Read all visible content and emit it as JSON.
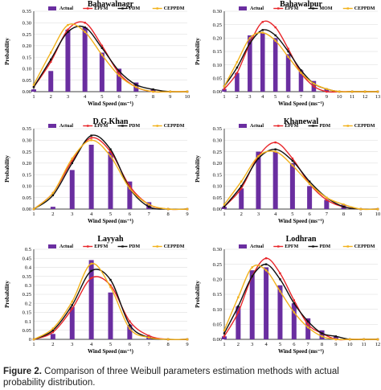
{
  "figure": {
    "caption_label": "Figure 2.",
    "caption_text": "Comparison of three Weibull parameters estimation methods with actual probability distribution."
  },
  "colors": {
    "Actual": "#6a2ea0",
    "EPFM": "#e8262a",
    "PDM": "#111111",
    "MOM": "#111111",
    "CEPPDM": "#f2b21c"
  },
  "chart_data": [
    {
      "type": "bar",
      "title": "Bahawalnagr",
      "xlabel": "Wind Speed (ms⁻¹)",
      "ylabel": "Probability",
      "x": [
        1,
        2,
        3,
        4,
        5,
        6,
        7,
        8,
        9,
        10
      ],
      "xlim": [
        1,
        10
      ],
      "ylim": [
        0,
        0.35
      ],
      "yticks": [
        "0.00",
        "0.05",
        "0.10",
        "0.15",
        "0.20",
        "0.25",
        "0.30",
        "0.35"
      ],
      "legend": [
        "Actual",
        "EPFM",
        "PDM",
        "CEPPDM"
      ],
      "series": [
        {
          "name": "Actual",
          "kind": "bar",
          "values": [
            0.01,
            0.09,
            0.27,
            0.28,
            0.17,
            0.1,
            0.04,
            0.01,
            0.0,
            0.0
          ]
        },
        {
          "name": "EPFM",
          "kind": "line",
          "values": [
            0.02,
            0.13,
            0.27,
            0.3,
            0.2,
            0.08,
            0.02,
            0.0,
            0.0,
            0.0
          ]
        },
        {
          "name": "PDM",
          "kind": "line",
          "values": [
            0.02,
            0.14,
            0.26,
            0.28,
            0.19,
            0.09,
            0.03,
            0.01,
            0.0,
            0.0
          ]
        },
        {
          "name": "CEPPDM",
          "kind": "line",
          "values": [
            0.03,
            0.17,
            0.29,
            0.26,
            0.16,
            0.07,
            0.02,
            0.0,
            0.0,
            0.0
          ]
        }
      ]
    },
    {
      "type": "bar",
      "title": "Bahawalpur",
      "xlabel": "Wind Speed (ms⁻¹)",
      "ylabel": "Probability",
      "x": [
        1,
        2,
        3,
        4,
        5,
        6,
        7,
        8,
        9,
        10,
        11,
        12,
        13
      ],
      "xlim": [
        1,
        13
      ],
      "ylim": [
        0,
        0.3
      ],
      "yticks": [
        "0.00",
        "0.05",
        "0.10",
        "0.15",
        "0.20",
        "0.25",
        "0.30"
      ],
      "legend": [
        "Actual",
        "EPFM",
        "MOM",
        "CEPPDM"
      ],
      "series": [
        {
          "name": "Actual",
          "kind": "bar",
          "values": [
            0.01,
            0.07,
            0.21,
            0.22,
            0.2,
            0.14,
            0.08,
            0.04,
            0.01,
            0.0,
            0.0,
            0.0,
            0.0
          ]
        },
        {
          "name": "EPFM",
          "kind": "line",
          "values": [
            0.01,
            0.07,
            0.18,
            0.26,
            0.24,
            0.16,
            0.07,
            0.02,
            0.0,
            0.0,
            0.0,
            0.0,
            0.0
          ]
        },
        {
          "name": "MOM",
          "kind": "line",
          "values": [
            0.02,
            0.09,
            0.18,
            0.23,
            0.21,
            0.15,
            0.08,
            0.03,
            0.01,
            0.0,
            0.0,
            0.0,
            0.0
          ]
        },
        {
          "name": "CEPPDM",
          "kind": "line",
          "values": [
            0.02,
            0.11,
            0.2,
            0.22,
            0.19,
            0.13,
            0.07,
            0.03,
            0.01,
            0.0,
            0.0,
            0.0,
            0.0
          ]
        }
      ]
    },
    {
      "type": "bar",
      "title": "D.G.Khan",
      "xlabel": "Wind Speed (ms⁻¹)",
      "ylabel": "Probability",
      "x": [
        1,
        2,
        3,
        4,
        5,
        6,
        7,
        8,
        9
      ],
      "xlim": [
        1,
        9
      ],
      "ylim": [
        0,
        0.35
      ],
      "yticks": [
        "0.00",
        "0.05",
        "0.10",
        "0.15",
        "0.20",
        "0.25",
        "0.30",
        "0.35"
      ],
      "legend": [
        "Actual",
        "EPFM",
        "PDM",
        "CEPPDM"
      ],
      "series": [
        {
          "name": "Actual",
          "kind": "bar",
          "values": [
            0.0,
            0.01,
            0.17,
            0.28,
            0.25,
            0.12,
            0.03,
            0.0,
            0.0
          ]
        },
        {
          "name": "EPFM",
          "kind": "line",
          "values": [
            0.0,
            0.07,
            0.21,
            0.31,
            0.25,
            0.1,
            0.02,
            0.0,
            0.0
          ]
        },
        {
          "name": "PDM",
          "kind": "line",
          "values": [
            0.0,
            0.06,
            0.2,
            0.32,
            0.26,
            0.09,
            0.01,
            0.0,
            0.0
          ]
        },
        {
          "name": "CEPPDM",
          "kind": "line",
          "values": [
            0.0,
            0.07,
            0.22,
            0.3,
            0.23,
            0.09,
            0.02,
            0.0,
            0.0
          ]
        }
      ]
    },
    {
      "type": "bar",
      "title": "Khanewal",
      "xlabel": "Wind Speed (ms⁻¹)",
      "ylabel": "Probability",
      "x": [
        1,
        2,
        3,
        4,
        5,
        6,
        7,
        8,
        9,
        10
      ],
      "xlim": [
        1,
        10
      ],
      "ylim": [
        0,
        0.35
      ],
      "yticks": [
        "0.00",
        "0.05",
        "0.10",
        "0.15",
        "0.20",
        "0.25",
        "0.30",
        "0.35"
      ],
      "legend": [
        "Actual",
        "EPFM",
        "PDM",
        "CEPPDM"
      ],
      "series": [
        {
          "name": "Actual",
          "kind": "bar",
          "values": [
            0.01,
            0.09,
            0.25,
            0.25,
            0.2,
            0.1,
            0.04,
            0.02,
            0.0,
            0.0
          ]
        },
        {
          "name": "EPFM",
          "kind": "line",
          "values": [
            0.01,
            0.09,
            0.23,
            0.29,
            0.22,
            0.11,
            0.04,
            0.01,
            0.0,
            0.0
          ]
        },
        {
          "name": "PDM",
          "kind": "line",
          "values": [
            0.01,
            0.1,
            0.22,
            0.26,
            0.21,
            0.12,
            0.05,
            0.01,
            0.0,
            0.0
          ]
        },
        {
          "name": "CEPPDM",
          "kind": "line",
          "values": [
            0.02,
            0.12,
            0.23,
            0.25,
            0.19,
            0.11,
            0.05,
            0.02,
            0.0,
            0.0
          ]
        }
      ]
    },
    {
      "type": "bar",
      "title": "Layyah",
      "xlabel": "Wind Speed (ms⁻¹)",
      "ylabel": "Probability",
      "x": [
        1,
        2,
        3,
        4,
        5,
        6,
        7,
        8,
        9
      ],
      "xlim": [
        1,
        9
      ],
      "ylim": [
        0,
        0.5
      ],
      "yticks": [
        "0",
        "0.05",
        "0.1",
        "0.15",
        "0.2",
        "0.25",
        "0.3",
        "0.35",
        "0.4",
        "0.45",
        "0.5"
      ],
      "legend": [
        "Actual",
        "EPFM",
        "PDM",
        "CEPPDM"
      ],
      "series": [
        {
          "name": "Actual",
          "kind": "bar",
          "values": [
            0.0,
            0.03,
            0.18,
            0.44,
            0.26,
            0.08,
            0.02,
            0.0,
            0.0
          ]
        },
        {
          "name": "EPFM",
          "kind": "line",
          "values": [
            0.0,
            0.04,
            0.17,
            0.34,
            0.3,
            0.1,
            0.02,
            0.0,
            0.0
          ]
        },
        {
          "name": "PDM",
          "kind": "line",
          "values": [
            0.0,
            0.05,
            0.19,
            0.38,
            0.33,
            0.08,
            0.01,
            0.0,
            0.0
          ]
        },
        {
          "name": "CEPPDM",
          "kind": "line",
          "values": [
            0.0,
            0.06,
            0.21,
            0.42,
            0.29,
            0.06,
            0.01,
            0.0,
            0.0
          ]
        }
      ]
    },
    {
      "type": "bar",
      "title": "Lodhran",
      "xlabel": "Wind Speed (ms⁻¹)",
      "ylabel": "Probability",
      "x": [
        1,
        2,
        3,
        4,
        5,
        6,
        7,
        8,
        9,
        10,
        11,
        12
      ],
      "xlim": [
        1,
        12
      ],
      "ylim": [
        0,
        0.3
      ],
      "yticks": [
        "0.00",
        "0.05",
        "0.10",
        "0.15",
        "0.20",
        "0.25",
        "0.30"
      ],
      "legend": [
        "Actual",
        "EPFM",
        "PDM",
        "CEPPDM"
      ],
      "series": [
        {
          "name": "Actual",
          "kind": "bar",
          "values": [
            0.01,
            0.11,
            0.23,
            0.24,
            0.18,
            0.12,
            0.07,
            0.03,
            0.01,
            0.0,
            0.0,
            0.0
          ]
        },
        {
          "name": "EPFM",
          "kind": "line",
          "values": [
            0.01,
            0.09,
            0.21,
            0.27,
            0.22,
            0.13,
            0.05,
            0.02,
            0.0,
            0.0,
            0.0,
            0.0
          ]
        },
        {
          "name": "PDM",
          "kind": "line",
          "values": [
            0.02,
            0.11,
            0.21,
            0.25,
            0.2,
            0.12,
            0.06,
            0.02,
            0.01,
            0.0,
            0.0,
            0.0
          ]
        },
        {
          "name": "CEPPDM",
          "kind": "line",
          "values": [
            0.03,
            0.14,
            0.24,
            0.23,
            0.16,
            0.09,
            0.04,
            0.01,
            0.0,
            0.0,
            0.0,
            0.0
          ]
        }
      ]
    }
  ]
}
